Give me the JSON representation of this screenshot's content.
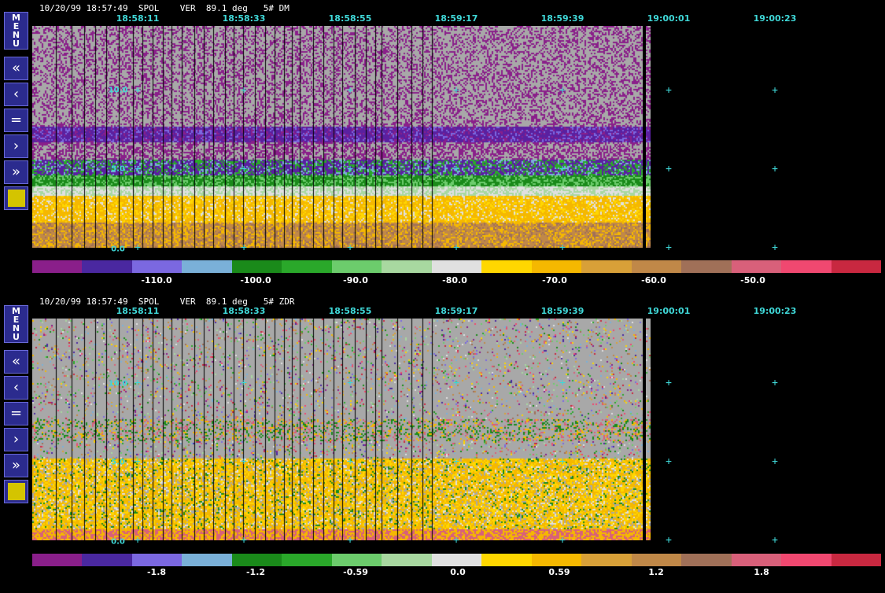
{
  "panels": [
    {
      "id": "dm",
      "header": "10/20/99 18:57:49  SPOL    VER  89.1 deg   5# DM",
      "times": [
        "18:58:11",
        "18:58:33",
        "18:58:55",
        "18:59:17",
        "18:59:39",
        "19:00:01",
        "19:00:23"
      ],
      "altitudes": [
        "10.0",
        "5.0",
        "0.0"
      ],
      "colorbar_labels": [
        "-110.0",
        "-100.0",
        "-90.0",
        "-80.0",
        "-70.0",
        "-60.0",
        "-50.0"
      ]
    },
    {
      "id": "zdr",
      "header": "10/20/99 18:57:49  SPOL    VER  89.1 deg   5# ZDR",
      "times": [
        "18:58:11",
        "18:58:33",
        "18:58:55",
        "18:59:17",
        "18:59:39",
        "19:00:01",
        "19:00:23"
      ],
      "altitudes": [
        "10.0",
        "5.0",
        "0.0"
      ],
      "colorbar_labels": [
        "-1.8",
        "-1.2",
        "-0.59",
        "0.0",
        "0.59",
        "1.2",
        "1.8"
      ]
    }
  ],
  "toolbar": {
    "menu_label": [
      "M",
      "E",
      "N",
      "U"
    ],
    "buttons": [
      {
        "name": "rewind-fast",
        "glyph": "«"
      },
      {
        "name": "step-back",
        "glyph": "‹"
      },
      {
        "name": "pause",
        "glyph": "="
      },
      {
        "name": "step-forward",
        "glyph": "›"
      },
      {
        "name": "forward-fast",
        "glyph": "»"
      }
    ]
  },
  "colorscale": [
    "#8a1f8a",
    "#4a28a0",
    "#7b68e0",
    "#7ab0d8",
    "#1a8a1a",
    "#2aa82a",
    "#6ccc6c",
    "#a8d8a0",
    "#e0e0e0",
    "#ffd700",
    "#f5b800",
    "#d8a038",
    "#c08848",
    "#a07058",
    "#d8607a",
    "#f04870",
    "#c82840"
  ],
  "colors": {
    "accent": "#3fd7d7",
    "button": "#2b2b8e",
    "swatch": "#d4c400",
    "background_gray": "#a8a8a8"
  }
}
